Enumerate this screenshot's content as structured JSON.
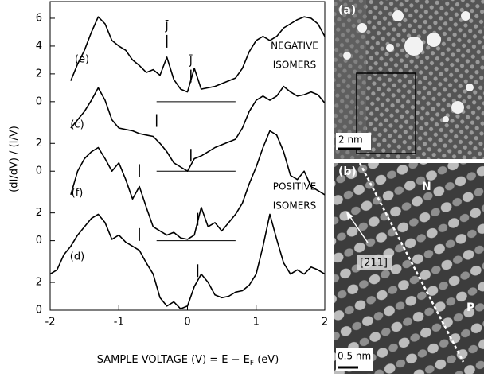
{
  "chart_data": {
    "type": "line",
    "y_label": "(dI/dV) / (I/V)",
    "x_label": "SAMPLE VOLTAGE (V) = E − E",
    "x_label_sub": "F",
    "x_label_end": " (eV)",
    "x": [
      -2.0,
      -1.9,
      -1.8,
      -1.7,
      -1.6,
      -1.5,
      -1.4,
      -1.3,
      -1.2,
      -1.1,
      -1.0,
      -0.9,
      -0.8,
      -0.7,
      -0.6,
      -0.5,
      -0.4,
      -0.3,
      -0.2,
      -0.1,
      0.0,
      0.1,
      0.2,
      0.3,
      0.4,
      0.5,
      0.6,
      0.7,
      0.8,
      0.9,
      1.0,
      1.1,
      1.2,
      1.3,
      1.4,
      1.5,
      1.6,
      1.7,
      1.8,
      1.9,
      2.0
    ],
    "series": [
      {
        "name": "(e)",
        "color": "#000000",
        "markers": [
          -0.3,
          0.05
        ],
        "marker_label": "J̄",
        "values": [
          null,
          null,
          null,
          16.5,
          17.7,
          18.7,
          20.0,
          21.1,
          20.6,
          19.4,
          19.0,
          18.7,
          18.0,
          17.6,
          17.1,
          17.3,
          16.9,
          18.2,
          16.6,
          15.9,
          15.7,
          17.4,
          15.9,
          16.0,
          16.1,
          16.3,
          16.5,
          16.7,
          17.4,
          18.6,
          19.4,
          19.7,
          19.4,
          19.7,
          20.3,
          20.6,
          20.9,
          21.1,
          21.0,
          20.6,
          19.7
        ]
      },
      {
        "name": "(c)",
        "color": "#000000",
        "markers": [
          -0.45,
          0.05
        ],
        "values": [
          null,
          null,
          null,
          13.1,
          13.7,
          14.3,
          15.1,
          16.0,
          15.1,
          13.7,
          13.1,
          13.0,
          12.9,
          12.7,
          12.6,
          12.5,
          12.0,
          11.4,
          10.6,
          10.3,
          10.0,
          10.9,
          11.1,
          11.4,
          11.7,
          11.9,
          12.1,
          12.3,
          13.1,
          14.3,
          15.1,
          15.4,
          15.1,
          15.4,
          16.1,
          15.7,
          15.4,
          15.5,
          15.7,
          15.5,
          14.9
        ]
      },
      {
        "name": "(f)",
        "color": "#000000",
        "markers": [
          -0.7,
          0.15
        ],
        "values": [
          null,
          null,
          null,
          8.3,
          10.0,
          10.9,
          11.4,
          11.7,
          10.9,
          10.0,
          10.6,
          9.4,
          8.0,
          8.9,
          7.4,
          6.0,
          5.7,
          5.4,
          5.6,
          5.2,
          5.1,
          5.4,
          7.4,
          6.0,
          6.3,
          5.7,
          6.3,
          6.9,
          7.7,
          9.1,
          10.3,
          11.7,
          12.9,
          12.6,
          11.4,
          9.7,
          9.4,
          10.0,
          8.9,
          8.6,
          8.3
        ]
      },
      {
        "name": "(d)",
        "color": "#000000",
        "markers": [
          -0.7,
          0.15
        ],
        "values": [
          2.6,
          2.9,
          4.0,
          4.6,
          5.4,
          6.0,
          6.6,
          6.9,
          6.3,
          5.1,
          5.4,
          4.9,
          4.6,
          4.3,
          3.4,
          2.6,
          0.9,
          0.3,
          0.6,
          0.1,
          0.3,
          1.7,
          2.6,
          2.0,
          1.1,
          0.9,
          1.0,
          1.3,
          1.4,
          1.8,
          2.6,
          4.6,
          6.9,
          5.1,
          3.4,
          2.6,
          2.9,
          2.6,
          3.1,
          2.9,
          2.6
        ]
      }
    ],
    "annotations": [
      {
        "lines": [
          "NEGATIVE",
          "ISOMERS"
        ]
      },
      {
        "lines": [
          "POSITIVE",
          "ISOMERS"
        ]
      }
    ],
    "xlim": [
      -2,
      2
    ],
    "xticks": [
      -2,
      -1,
      0,
      1,
      2
    ],
    "ylim": [
      0,
      22.2
    ],
    "yticks": [
      0,
      {
        "value": 2,
        "label": "2"
      },
      {
        "value": 5,
        "label": "0"
      },
      {
        "value": 7,
        "label": "2"
      },
      {
        "value": 10,
        "label": "0"
      },
      {
        "value": 12,
        "label": "2"
      },
      {
        "value": 15,
        "label": "0"
      },
      {
        "value": 17,
        "label": "2"
      },
      {
        "value": 19,
        "label": "4"
      },
      {
        "value": 21,
        "label": "6"
      }
    ],
    "baselines": [
      15,
      10,
      5,
      0
    ]
  },
  "panels": {
    "a": {
      "label": "(a)",
      "scale": "2 nm"
    },
    "b": {
      "label": "(b)",
      "scale": "0.5 nm",
      "direction": "[2̄11]",
      "region_n": "N",
      "region_p": "P"
    }
  }
}
